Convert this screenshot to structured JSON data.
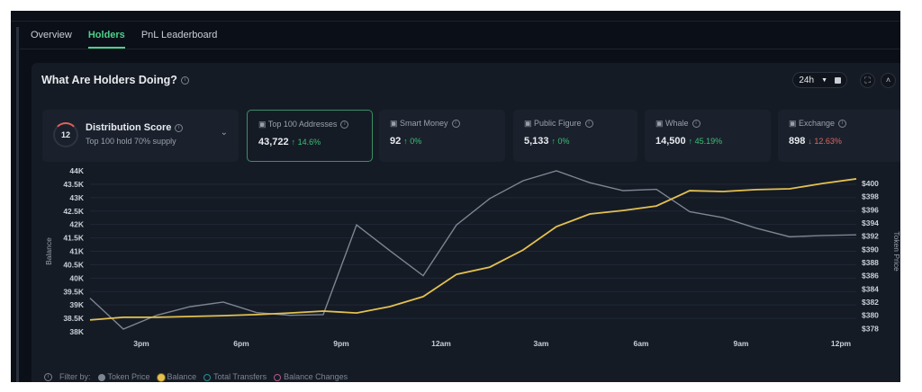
{
  "tabs": [
    {
      "label": "Overview"
    },
    {
      "label": "Holders",
      "active": true
    },
    {
      "label": "PnL Leaderboard"
    }
  ],
  "section": {
    "title": "What Are Holders Doing?",
    "timeframe": "24h"
  },
  "distribution": {
    "score": "12",
    "label": "Distribution Score",
    "sub": "Top 100 hold 70% supply"
  },
  "stats": [
    {
      "label": "Top 100 Addresses",
      "value": "43,722",
      "change": "↑ 14.6%",
      "dir": "up",
      "icon": "wallet-icon"
    },
    {
      "label": "Smart Money",
      "value": "92",
      "change": "↑ 0%",
      "dir": "up",
      "icon": "smart-money-icon"
    },
    {
      "label": "Public Figure",
      "value": "5,133",
      "change": "↑ 0%",
      "dir": "up",
      "icon": "public-figure-icon"
    },
    {
      "label": "Whale",
      "value": "14,500",
      "change": "↑ 45.19%",
      "dir": "up",
      "icon": "whale-icon"
    },
    {
      "label": "Exchange",
      "value": "898",
      "change": "↓ 12.63%",
      "dir": "down",
      "icon": "bank-icon"
    }
  ],
  "filters": {
    "label": "Filter by:",
    "items": [
      {
        "label": "Token Price",
        "color": "#7d8591"
      },
      {
        "label": "Balance",
        "color": "#e3c050"
      },
      {
        "label": "Total Transfers",
        "color": "#2a8f8f"
      },
      {
        "label": "Balance Changes",
        "color": "#b05a8a"
      }
    ]
  },
  "chart_data": {
    "type": "line",
    "ylabel": "Balance",
    "y2label": "Token Price",
    "yticks": [
      "38K",
      "38.5K",
      "39K",
      "39.5K",
      "40K",
      "40.5K",
      "41K",
      "41.5K",
      "42K",
      "42.5K",
      "43K",
      "43.5K",
      "44K"
    ],
    "ylim": [
      38,
      44
    ],
    "y2ticks": [
      "$378",
      "$380",
      "$382",
      "$384",
      "$386",
      "$388",
      "$390",
      "$392",
      "$394",
      "$396",
      "$398",
      "$400"
    ],
    "y2lim": [
      377.5,
      401.9
    ],
    "xticks": [
      {
        "label": "3pm",
        "pos": 1.54
      },
      {
        "label": "6pm",
        "pos": 4.54
      },
      {
        "label": "9pm",
        "pos": 7.54
      },
      {
        "label": "12am",
        "pos": 10.54
      },
      {
        "label": "3am",
        "pos": 13.54
      },
      {
        "label": "6am",
        "pos": 16.54
      },
      {
        "label": "9am",
        "pos": 19.54
      },
      {
        "label": "12pm",
        "pos": 22.54
      }
    ],
    "series": [
      {
        "name": "Balance",
        "axis": "left",
        "color": "#e3c050",
        "values": [
          38.44,
          38.54,
          38.54,
          38.57,
          38.6,
          38.64,
          38.7,
          38.77,
          38.7,
          38.94,
          39.31,
          40.14,
          40.41,
          41.05,
          41.92,
          42.39,
          42.52,
          42.69,
          43.26,
          43.23,
          43.3,
          43.33,
          43.53,
          43.7
        ]
      },
      {
        "name": "Token Price",
        "axis": "right",
        "color": "#7d8591",
        "values": [
          382.6,
          377.9,
          380.0,
          381.3,
          382.0,
          380.4,
          380.0,
          380.1,
          393.7,
          389.8,
          386.0,
          393.7,
          397.7,
          400.4,
          401.9,
          400.1,
          398.9,
          399.1,
          395.7,
          394.8,
          393.2,
          391.9,
          392.1,
          392.2
        ]
      }
    ]
  }
}
